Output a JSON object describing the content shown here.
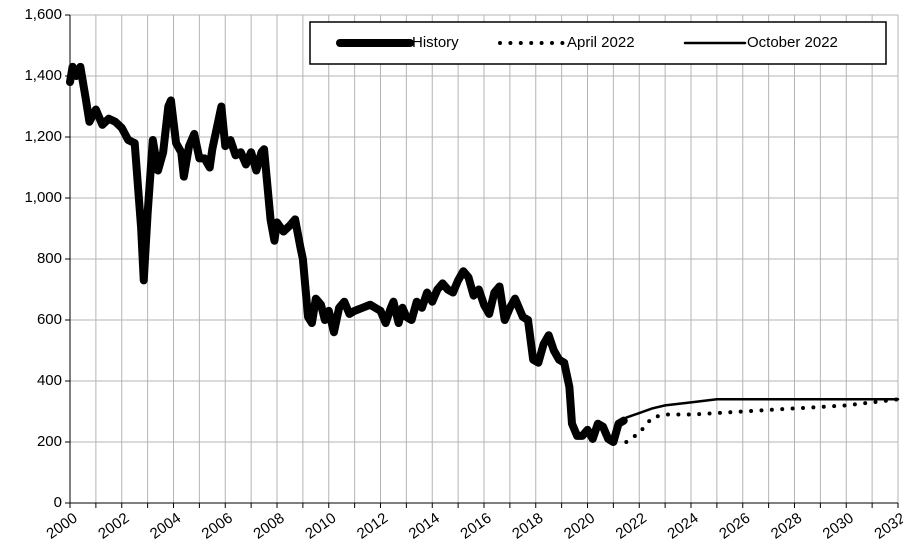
{
  "chart_data": {
    "type": "line",
    "xlim": [
      2000,
      2032
    ],
    "xticks": [
      2000,
      2002,
      2004,
      2006,
      2008,
      2010,
      2012,
      2014,
      2016,
      2018,
      2020,
      2022,
      2024,
      2026,
      2028,
      2030,
      2032
    ],
    "x_minor_ticks": [
      2001,
      2003,
      2005,
      2007,
      2009,
      2011,
      2013,
      2015,
      2017,
      2019,
      2021,
      2023,
      2025,
      2027,
      2029,
      2031
    ],
    "ylim": [
      0,
      1600
    ],
    "yticks": [
      0,
      200,
      400,
      600,
      800,
      {
        "value": 1000,
        "label": "1,000"
      },
      {
        "value": 1200,
        "label": "1,200"
      },
      {
        "value": 1400,
        "label": "1,400"
      },
      {
        "value": 1600,
        "label": "1,600"
      }
    ],
    "grid": true,
    "legend": "top-right",
    "series": [
      {
        "name": "History",
        "color": "#000000",
        "width": 8,
        "dash": "solid",
        "x": [
          2000.0,
          2000.1,
          2000.25,
          2000.4,
          2000.6,
          2000.75,
          2001.0,
          2001.25,
          2001.5,
          2001.75,
          2002.0,
          2002.25,
          2002.5,
          2002.75,
          2002.85,
          2003.0,
          2003.2,
          2003.4,
          2003.6,
          2003.8,
          2003.9,
          2004.1,
          2004.3,
          2004.4,
          2004.6,
          2004.8,
          2005.0,
          2005.2,
          2005.4,
          2005.5,
          2005.7,
          2005.85,
          2006.0,
          2006.2,
          2006.4,
          2006.6,
          2006.8,
          2007.0,
          2007.2,
          2007.4,
          2007.5,
          2007.75,
          2007.9,
          2008.0,
          2008.25,
          2008.5,
          2008.7,
          2008.9,
          2009.0,
          2009.2,
          2009.35,
          2009.5,
          2009.7,
          2009.85,
          2010.0,
          2010.2,
          2010.4,
          2010.6,
          2010.8,
          2011.0,
          2011.3,
          2011.6,
          2011.8,
          2012.0,
          2012.2,
          2012.4,
          2012.5,
          2012.7,
          2012.85,
          2013.0,
          2013.2,
          2013.4,
          2013.6,
          2013.8,
          2014.0,
          2014.2,
          2014.4,
          2014.6,
          2014.8,
          2015.0,
          2015.2,
          2015.4,
          2015.6,
          2015.8,
          2016.0,
          2016.2,
          2016.4,
          2016.6,
          2016.8,
          2017.0,
          2017.2,
          2017.5,
          2017.7,
          2017.9,
          2018.1,
          2018.3,
          2018.5,
          2018.7,
          2018.9,
          2019.1,
          2019.3,
          2019.4,
          2019.6,
          2019.8,
          2020.0,
          2020.2,
          2020.4,
          2020.6,
          2020.8,
          2021.0,
          2021.2,
          2021.4
        ],
        "values": [
          1380,
          1430,
          1400,
          1430,
          1330,
          1250,
          1290,
          1240,
          1260,
          1250,
          1230,
          1190,
          1180,
          900,
          730,
          950,
          1190,
          1090,
          1150,
          1300,
          1320,
          1180,
          1150,
          1070,
          1170,
          1210,
          1130,
          1130,
          1100,
          1160,
          1240,
          1300,
          1170,
          1190,
          1140,
          1150,
          1110,
          1150,
          1090,
          1150,
          1160,
          930,
          860,
          920,
          890,
          910,
          930,
          840,
          800,
          610,
          590,
          670,
          650,
          600,
          630,
          560,
          640,
          660,
          620,
          630,
          640,
          650,
          640,
          630,
          590,
          640,
          660,
          590,
          640,
          610,
          600,
          660,
          640,
          690,
          660,
          700,
          720,
          700,
          690,
          730,
          760,
          740,
          680,
          700,
          650,
          620,
          690,
          710,
          600,
          640,
          670,
          610,
          600,
          470,
          460,
          520,
          550,
          500,
          470,
          460,
          380,
          260,
          220,
          220,
          240,
          210,
          260,
          250,
          210,
          200,
          260,
          270
        ]
      },
      {
        "name": "April 2022",
        "color": "#000000",
        "width": 4,
        "dash": "dotted",
        "x": [
          2021.5,
          2022,
          2022.5,
          2023,
          2024,
          2025,
          2026,
          2027,
          2028,
          2029,
          2030,
          2031,
          2032
        ],
        "values": [
          200,
          230,
          280,
          290,
          290,
          295,
          300,
          305,
          310,
          315,
          320,
          330,
          340
        ]
      },
      {
        "name": "October 2022",
        "color": "#000000",
        "width": 2.5,
        "dash": "solid",
        "x": [
          2021.4,
          2021.5,
          2022,
          2022.5,
          2023,
          2024,
          2025,
          2026,
          2027,
          2028,
          2029,
          2030,
          2031,
          2032
        ],
        "values": [
          270,
          280,
          295,
          310,
          320,
          330,
          340,
          340,
          340,
          340,
          340,
          340,
          340,
          340
        ]
      }
    ]
  }
}
